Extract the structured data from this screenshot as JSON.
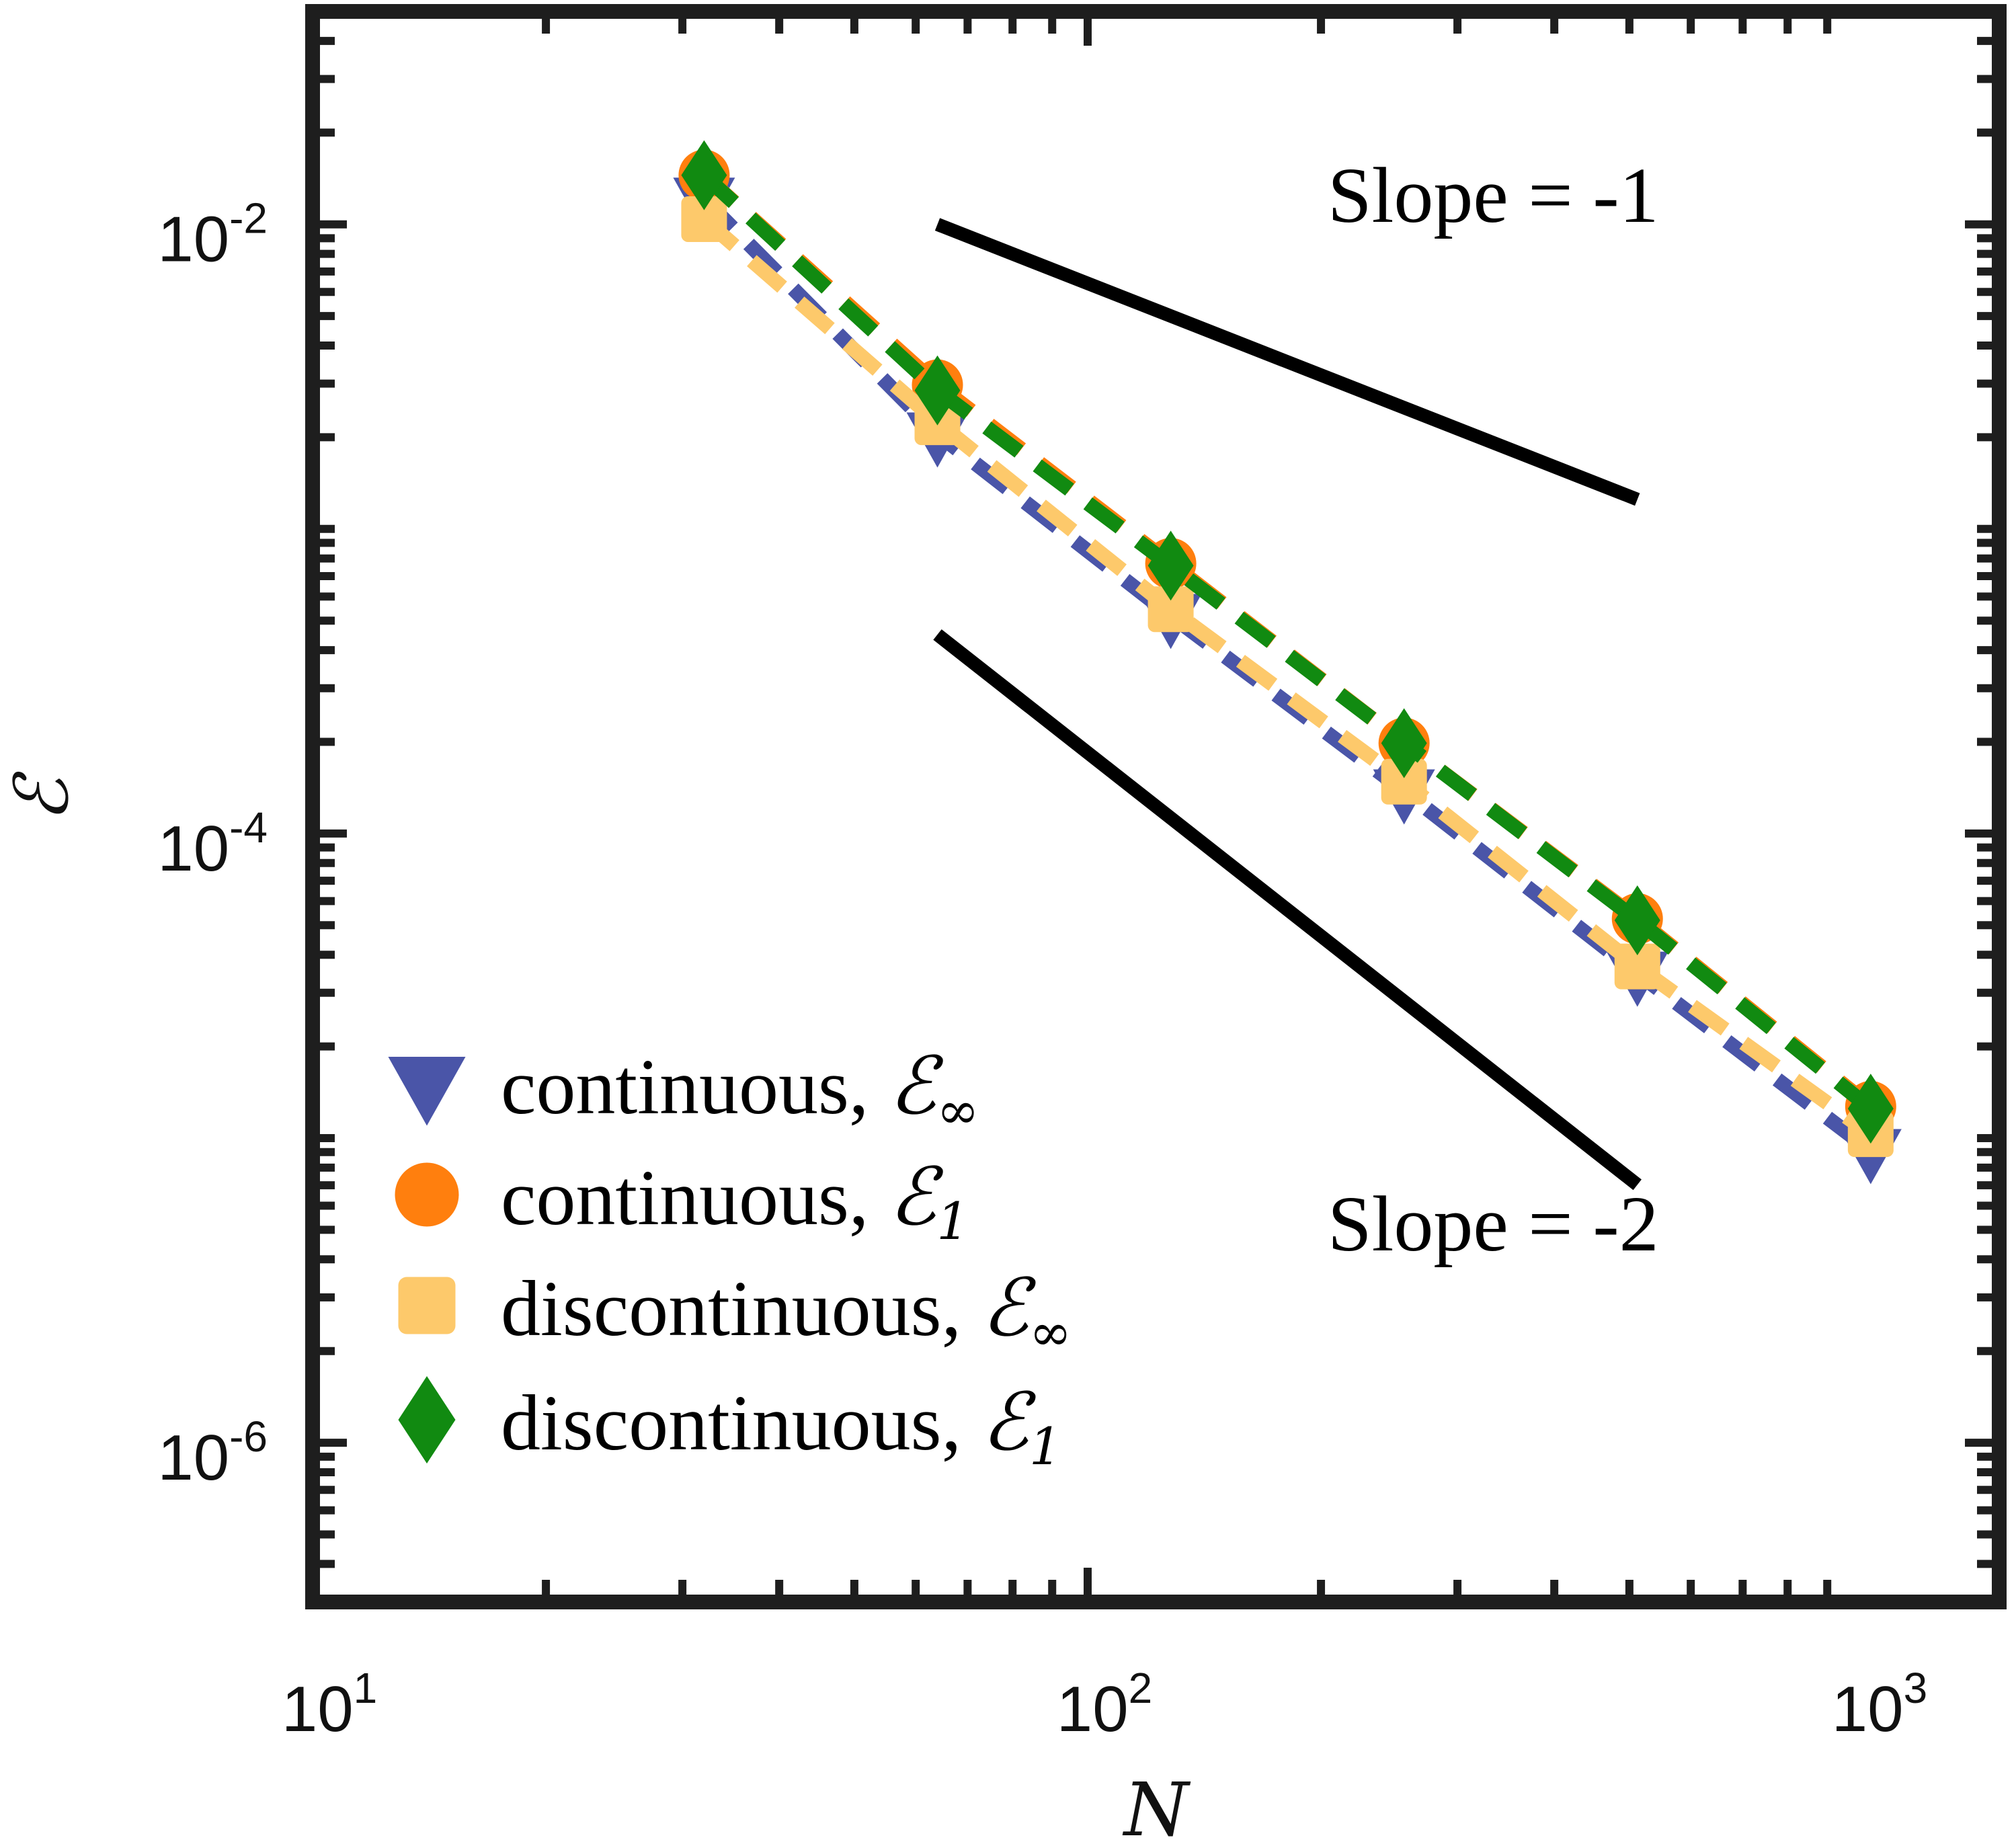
{
  "chart_data": {
    "type": "line",
    "scale": {
      "x": "log",
      "y": "log"
    },
    "xlabel": "N",
    "ylabel": "ℰ",
    "xlim": [
      10,
      1500
    ],
    "ylim": [
      3e-07,
      0.05
    ],
    "x_ticks": [
      {
        "base": "10",
        "exp": "1",
        "value": 10
      },
      {
        "base": "10",
        "exp": "2",
        "value": 100
      },
      {
        "base": "10",
        "exp": "3",
        "value": 1000
      }
    ],
    "y_ticks": [
      {
        "base": "10",
        "exp": "-2",
        "value": 0.01
      },
      {
        "base": "10",
        "exp": "-4",
        "value": 0.0001
      },
      {
        "base": "10",
        "exp": "-6",
        "value": 1e-06
      }
    ],
    "x": [
      32,
      64,
      128,
      256,
      512,
      1024
    ],
    "series": [
      {
        "name": "continuous, ℰ∞",
        "label_text": "continuous,",
        "symbol": "ℰ",
        "subscript": "∞",
        "marker": "triangle-down",
        "color": "#4a55a8",
        "values": [
          0.0121,
          0.00205,
          0.00052,
          0.000138,
          3.48e-05,
          9.1e-06
        ]
      },
      {
        "name": "continuous, ℰ1",
        "label_text": "continuous,",
        "symbol": "ℰ",
        "subscript": "1",
        "marker": "circle",
        "color": "#ff7f0e",
        "values": [
          0.0145,
          0.00297,
          0.00077,
          0.000198,
          5.25e-05,
          1.27e-05
        ]
      },
      {
        "name": "discontinuous, ℰ∞",
        "label_text": "discontinuous,",
        "symbol": "ℰ",
        "subscript": "∞",
        "marker": "square",
        "color": "#fdc96b",
        "values": [
          0.0104,
          0.00224,
          0.000545,
          0.000148,
          3.66e-05,
          1.03e-05
        ]
      },
      {
        "name": "discontinuous, ℰ1",
        "label_text": "discontinuous,",
        "symbol": "ℰ",
        "subscript": "1",
        "marker": "diamond",
        "color": "#118a11",
        "values": [
          0.0145,
          0.00285,
          0.000758,
          0.000198,
          5.19e-05,
          1.25e-05
        ]
      }
    ],
    "reference_lines": [
      {
        "label": "Slope = -1",
        "slope": -1,
        "x": [
          64,
          512
        ],
        "y": [
          0.01,
          0.00125
        ]
      },
      {
        "label": "Slope = -2",
        "slope": -2,
        "x": [
          64,
          512
        ],
        "y": [
          0.00045,
          7.03e-06
        ]
      }
    ],
    "legend": "bottom-left",
    "grid": false
  }
}
